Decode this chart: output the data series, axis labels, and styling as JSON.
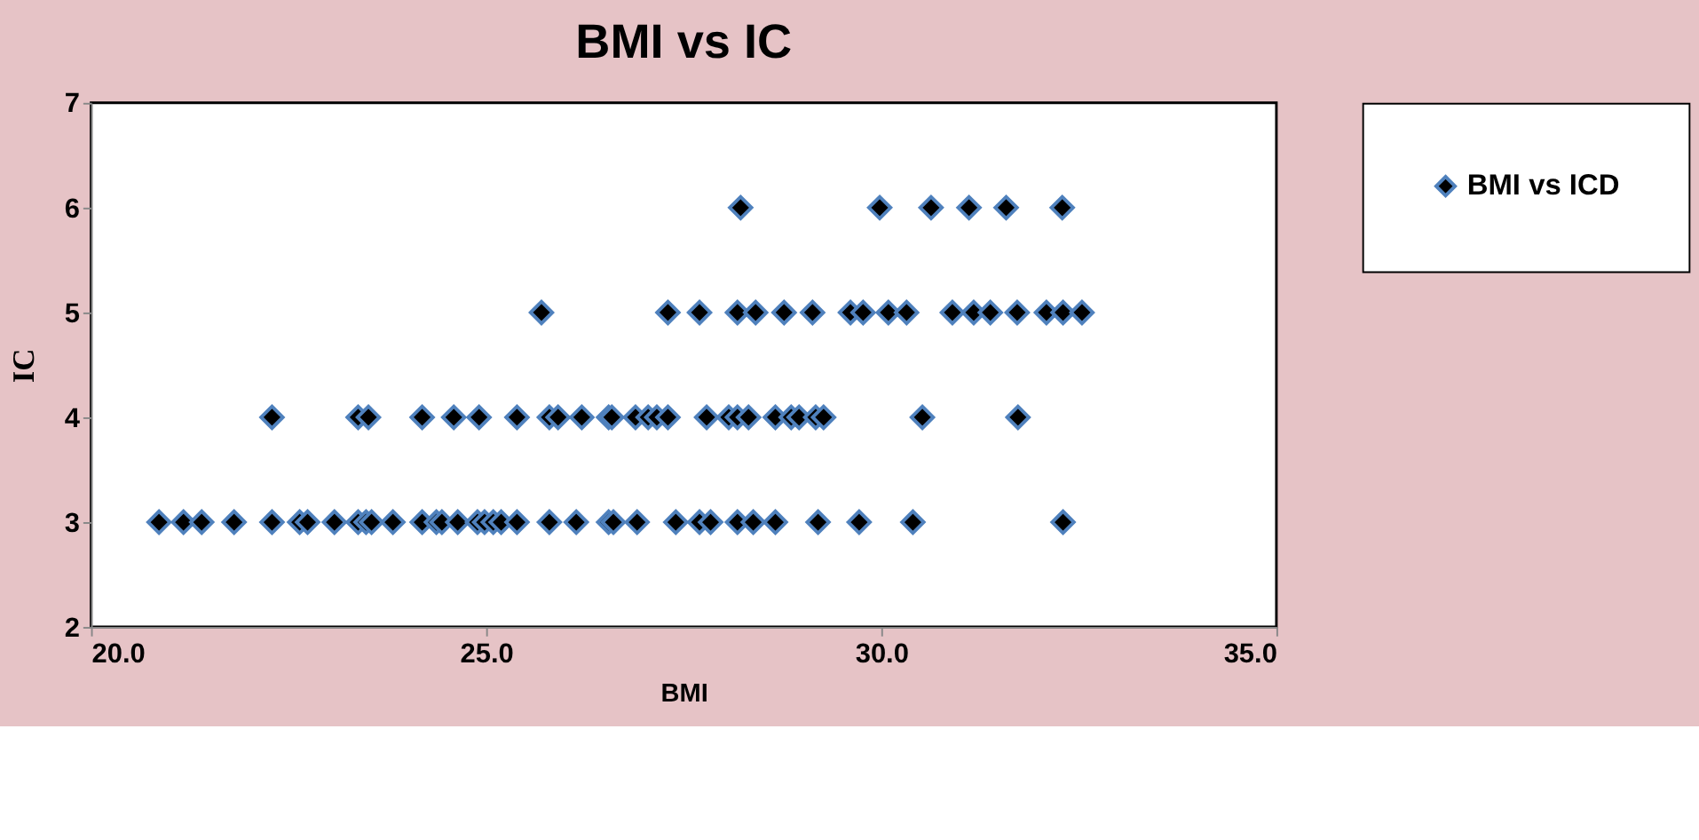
{
  "chart_data": {
    "type": "scatter",
    "title": "BMI vs IC",
    "xlabel": "BMI",
    "ylabel": "IC",
    "xlim": [
      20,
      35
    ],
    "xticks": [
      {
        "value": 20,
        "label": "20.0"
      },
      {
        "value": 25,
        "label": "25.0"
      },
      {
        "value": 30,
        "label": "30.0"
      },
      {
        "value": 35,
        "label": "35.0"
      }
    ],
    "ylim": [
      2,
      7
    ],
    "yticks": [
      2,
      3,
      4,
      5,
      6,
      7
    ],
    "marker": "diamond",
    "grid": false,
    "legend": "right",
    "series": [
      {
        "name": "BMI vs ICD",
        "color": "#000000",
        "x": [
          20.86,
          21.17,
          21.4,
          21.81,
          22.29,
          22.64,
          22.74,
          23.08,
          23.38,
          23.48,
          23.55,
          23.82,
          24.19,
          24.37,
          24.44,
          24.64,
          24.89,
          24.98,
          25.09,
          25.19,
          25.39,
          25.8,
          26.14,
          26.55,
          26.61,
          26.91,
          27.4,
          27.7,
          27.84,
          28.18,
          28.38,
          28.66,
          29.2,
          29.72,
          30.4,
          32.3,
          22.29,
          23.38,
          23.51,
          24.19,
          24.59,
          24.91,
          25.39,
          25.8,
          25.91,
          26.21,
          26.55,
          26.59,
          26.89,
          27.05,
          27.16,
          27.3,
          27.79,
          28.07,
          28.18,
          28.32,
          28.66,
          28.86,
          28.96,
          29.17,
          29.27,
          30.52,
          31.73,
          25.7,
          27.3,
          27.7,
          28.18,
          28.41,
          28.77,
          29.13,
          29.61,
          29.77,
          30.09,
          30.32,
          30.9,
          31.17,
          31.38,
          31.72,
          32.09,
          32.3,
          32.54,
          28.22,
          29.98,
          30.63,
          31.11,
          31.58,
          32.29
        ],
        "values": [
          3,
          3,
          3,
          3,
          3,
          3,
          3,
          3,
          3,
          3,
          3,
          3,
          3,
          3,
          3,
          3,
          3,
          3,
          3,
          3,
          3,
          3,
          3,
          3,
          3,
          3,
          3,
          3,
          3,
          3,
          3,
          3,
          3,
          3,
          3,
          3,
          4,
          4,
          4,
          4,
          4,
          4,
          4,
          4,
          4,
          4,
          4,
          4,
          4,
          4,
          4,
          4,
          4,
          4,
          4,
          4,
          4,
          4,
          4,
          4,
          4,
          4,
          4,
          5,
          5,
          5,
          5,
          5,
          5,
          5,
          5,
          5,
          5,
          5,
          5,
          5,
          5,
          5,
          5,
          5,
          5,
          6,
          6,
          6,
          6,
          6,
          6
        ]
      }
    ]
  }
}
